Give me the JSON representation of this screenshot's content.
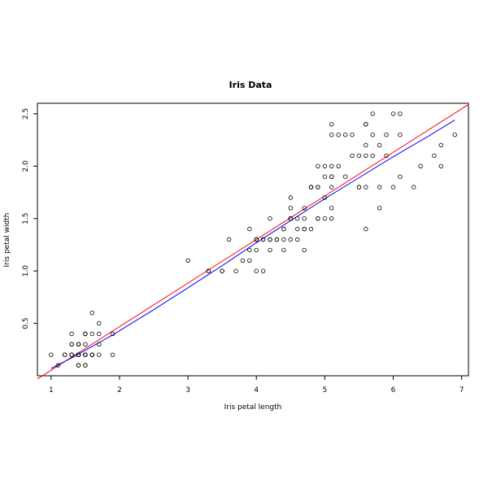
{
  "chart_data": {
    "type": "scatter",
    "title": "Iris Data",
    "xlabel": "Iris petal length",
    "ylabel": "Iris petal width",
    "xlim": [
      0.8,
      7.1
    ],
    "ylim": [
      0.0,
      2.6
    ],
    "xticks": [
      "1",
      "2",
      "3",
      "4",
      "5",
      "6",
      "7"
    ],
    "yticks": [
      "0.5",
      "1.0",
      "1.5",
      "2.0",
      "2.5"
    ],
    "grid": false,
    "points": {
      "x": [
        1.4,
        1.4,
        1.3,
        1.5,
        1.4,
        1.7,
        1.4,
        1.5,
        1.4,
        1.5,
        1.5,
        1.6,
        1.4,
        1.1,
        1.2,
        1.5,
        1.3,
        1.4,
        1.7,
        1.5,
        1.7,
        1.5,
        1.0,
        1.7,
        1.9,
        1.6,
        1.6,
        1.5,
        1.4,
        1.6,
        1.6,
        1.5,
        1.5,
        1.4,
        1.5,
        1.2,
        1.3,
        1.4,
        1.3,
        1.5,
        1.3,
        1.3,
        1.3,
        1.6,
        1.9,
        1.4,
        1.6,
        1.4,
        1.5,
        1.4,
        4.7,
        4.5,
        4.9,
        4.0,
        4.6,
        4.5,
        4.7,
        3.3,
        4.6,
        3.9,
        3.5,
        4.2,
        4.0,
        4.7,
        3.6,
        4.4,
        4.5,
        4.1,
        4.5,
        3.9,
        4.8,
        4.0,
        4.9,
        4.7,
        4.3,
        4.4,
        4.8,
        5.0,
        4.5,
        3.5,
        3.8,
        3.7,
        3.9,
        5.1,
        4.5,
        4.5,
        4.7,
        4.4,
        4.1,
        4.0,
        4.4,
        4.6,
        4.0,
        3.3,
        4.2,
        4.2,
        4.2,
        4.3,
        3.0,
        4.1,
        6.0,
        5.1,
        5.9,
        5.6,
        5.8,
        6.6,
        4.5,
        6.3,
        5.8,
        6.1,
        5.1,
        5.3,
        5.5,
        5.0,
        5.1,
        5.3,
        5.5,
        6.7,
        6.9,
        5.0,
        5.7,
        4.9,
        6.7,
        4.9,
        5.7,
        6.0,
        4.8,
        4.9,
        5.6,
        5.8,
        6.1,
        6.4,
        5.6,
        5.1,
        5.6,
        6.1,
        5.6,
        5.5,
        4.8,
        5.4,
        5.6,
        5.1,
        5.1,
        5.9,
        5.7,
        5.2,
        5.0,
        5.2,
        5.4,
        5.1
      ],
      "y": [
        0.2,
        0.2,
        0.2,
        0.2,
        0.2,
        0.4,
        0.3,
        0.2,
        0.2,
        0.1,
        0.2,
        0.2,
        0.1,
        0.1,
        0.2,
        0.4,
        0.4,
        0.3,
        0.3,
        0.3,
        0.2,
        0.4,
        0.2,
        0.5,
        0.2,
        0.2,
        0.4,
        0.2,
        0.2,
        0.2,
        0.2,
        0.4,
        0.1,
        0.2,
        0.2,
        0.2,
        0.2,
        0.1,
        0.2,
        0.2,
        0.3,
        0.3,
        0.2,
        0.6,
        0.4,
        0.3,
        0.2,
        0.2,
        0.2,
        0.2,
        1.4,
        1.5,
        1.5,
        1.3,
        1.5,
        1.3,
        1.6,
        1.0,
        1.3,
        1.4,
        1.0,
        1.5,
        1.0,
        1.4,
        1.3,
        1.4,
        1.5,
        1.0,
        1.5,
        1.1,
        1.8,
        1.3,
        1.5,
        1.2,
        1.3,
        1.4,
        1.4,
        1.7,
        1.5,
        1.0,
        1.1,
        1.0,
        1.2,
        1.6,
        1.5,
        1.6,
        1.5,
        1.3,
        1.3,
        1.3,
        1.2,
        1.4,
        1.2,
        1.0,
        1.3,
        1.2,
        1.3,
        1.3,
        1.1,
        1.3,
        2.5,
        1.9,
        2.1,
        1.8,
        2.2,
        2.1,
        1.7,
        1.8,
        1.8,
        2.5,
        2.0,
        1.9,
        2.1,
        2.0,
        2.4,
        2.3,
        1.8,
        2.2,
        2.3,
        1.5,
        2.3,
        2.0,
        2.0,
        1.8,
        2.1,
        1.8,
        1.8,
        1.8,
        2.1,
        1.6,
        1.9,
        2.0,
        2.2,
        1.5,
        1.4,
        2.3,
        2.4,
        1.8,
        1.8,
        2.1,
        2.4,
        2.3,
        1.9,
        2.3,
        2.5,
        2.3,
        1.9,
        2.0,
        2.3,
        1.8
      ]
    },
    "lines": [
      {
        "type": "linear-fit",
        "color": "#ff0000",
        "intercept": -0.3631,
        "slope": 0.4158,
        "x_range": [
          0.8,
          7.1
        ]
      },
      {
        "type": "smooth-fit",
        "color": "#0000ff",
        "x": [
          1.0,
          1.3,
          1.6,
          1.9,
          2.5,
          3.0,
          3.5,
          4.0,
          4.5,
          5.0,
          5.5,
          6.0,
          6.5,
          6.9
        ],
        "y": [
          0.07,
          0.17,
          0.28,
          0.39,
          0.63,
          0.84,
          1.05,
          1.27,
          1.48,
          1.69,
          1.89,
          2.09,
          2.28,
          2.44
        ]
      }
    ]
  }
}
